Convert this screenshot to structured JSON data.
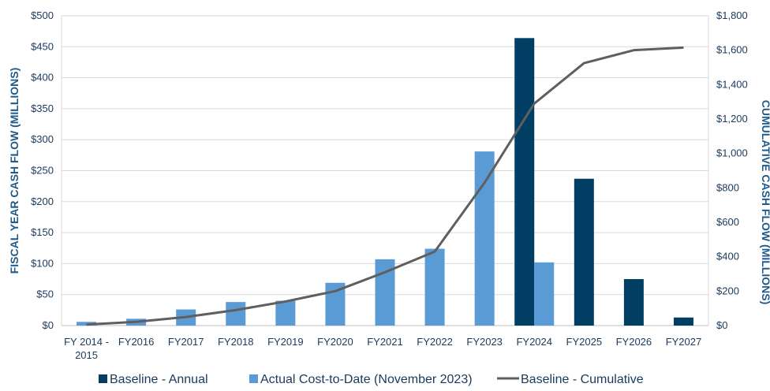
{
  "chart_data": {
    "type": "bar",
    "categories": [
      "FY 2014 -\n2015",
      "FY2016",
      "FY2017",
      "FY2018",
      "FY2019",
      "FY2020",
      "FY2021",
      "FY2022",
      "FY2023",
      "FY2024",
      "FY2025",
      "FY2026",
      "FY2027"
    ],
    "series": [
      {
        "name": "Baseline - Annual",
        "kind": "bar",
        "axis": "left",
        "color": "#003f63",
        "values": [
          null,
          null,
          null,
          null,
          null,
          null,
          null,
          null,
          null,
          464,
          237,
          75,
          13
        ]
      },
      {
        "name": "Actual Cost-to-Date (November 2023)",
        "kind": "bar",
        "axis": "left",
        "color": "#5b9bd5",
        "values": [
          6,
          11,
          26,
          38,
          40,
          69,
          107,
          124,
          281,
          102,
          null,
          null,
          null
        ]
      },
      {
        "name": "Baseline - Cumulative",
        "kind": "line",
        "axis": "right",
        "color": "#5f5f5f",
        "values": [
          6,
          22,
          50,
          90,
          140,
          200,
          310,
          430,
          830,
          1290,
          1525,
          1600,
          1615
        ]
      }
    ],
    "ylabel": "FISCAL YEAR CASH FLOW (MILLIONS)",
    "y2label": "CUMULATIVE CASH FLOW (MILLIONS)",
    "ylim": [
      0,
      500
    ],
    "y2lim": [
      0,
      1800
    ],
    "yticks": [
      "$0",
      "$50",
      "$100",
      "$150",
      "$200",
      "$250",
      "$300",
      "$350",
      "$400",
      "$450",
      "$500"
    ],
    "y2ticks": [
      "$0",
      "$200",
      "$400",
      "$600",
      "$800",
      "$1,000",
      "$1,200",
      "$1,400",
      "$1,600",
      "$1,800"
    ],
    "grid": true,
    "legend_position": "bottom"
  }
}
